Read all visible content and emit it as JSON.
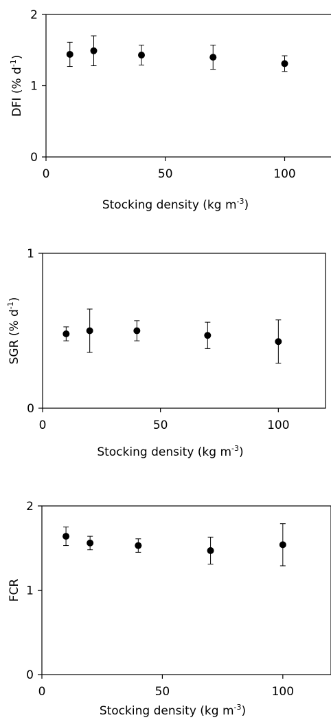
{
  "chart_data": [
    {
      "type": "scatter",
      "xlabel": "Stocking density (kg m",
      "xlabel_sup": "-3",
      "xlabel_end": ")",
      "ylabel": "DFI (% d",
      "ylabel_sup": "-1",
      "ylabel_end": ")",
      "xlim": [
        0,
        120
      ],
      "ylim": [
        0,
        2
      ],
      "xticks": [
        "0",
        "50",
        "100"
      ],
      "yticks": [
        "0",
        "1",
        "2"
      ],
      "grid": false,
      "points": [
        {
          "x": 10,
          "y": 1.44,
          "err": 0.17
        },
        {
          "x": 20,
          "y": 1.49,
          "err": 0.21
        },
        {
          "x": 40,
          "y": 1.43,
          "err": 0.14
        },
        {
          "x": 70,
          "y": 1.4,
          "err": 0.17
        },
        {
          "x": 100,
          "y": 1.31,
          "err": 0.11
        }
      ]
    },
    {
      "type": "scatter",
      "xlabel": "Stocking density (kg m",
      "xlabel_sup": "-3",
      "xlabel_end": ")",
      "ylabel": "SGR (% d",
      "ylabel_sup": "-1",
      "ylabel_end": ")",
      "xlim": [
        0,
        120
      ],
      "ylim": [
        0,
        1
      ],
      "xticks": [
        "0",
        "50",
        "100"
      ],
      "yticks": [
        "0",
        "1"
      ],
      "grid": false,
      "points": [
        {
          "x": 10,
          "y": 0.48,
          "err": 0.045
        },
        {
          "x": 20,
          "y": 0.5,
          "err": 0.14
        },
        {
          "x": 40,
          "y": 0.5,
          "err": 0.065
        },
        {
          "x": 70,
          "y": 0.47,
          "err": 0.085
        },
        {
          "x": 100,
          "y": 0.43,
          "err": 0.14
        }
      ]
    },
    {
      "type": "scatter",
      "xlabel": "Stocking density (kg m",
      "xlabel_sup": "-3",
      "xlabel_end": ")",
      "ylabel": "FCR",
      "ylabel_sup": "",
      "ylabel_end": "",
      "xlim": [
        0,
        120
      ],
      "ylim": [
        0,
        2
      ],
      "xticks": [
        "0",
        "50",
        "100"
      ],
      "yticks": [
        "0",
        "1",
        "2"
      ],
      "grid": false,
      "points": [
        {
          "x": 10,
          "y": 1.64,
          "err": 0.11
        },
        {
          "x": 20,
          "y": 1.56,
          "err": 0.08
        },
        {
          "x": 40,
          "y": 1.53,
          "err": 0.08
        },
        {
          "x": 70,
          "y": 1.47,
          "err": 0.16
        },
        {
          "x": 100,
          "y": 1.54,
          "err": 0.25
        }
      ]
    }
  ],
  "colors": {
    "marker": "#000000",
    "axis": "#000000",
    "background": "#ffffff"
  }
}
